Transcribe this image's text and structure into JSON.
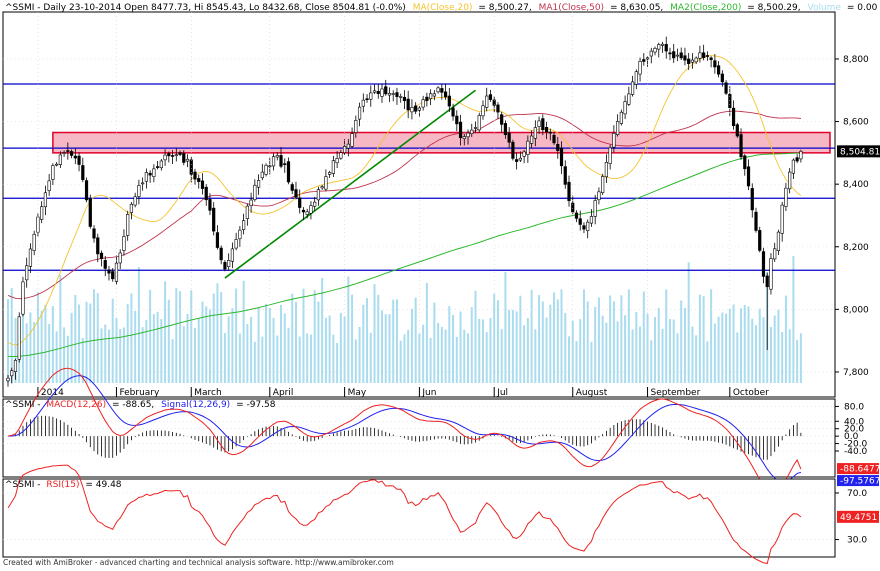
{
  "colors": {
    "price": "#000000",
    "ma20": "#f4c430",
    "ma50": "#c0344d",
    "ma200": "#2db82d",
    "volume": "#a8dcee",
    "hline": "#0000cc",
    "trendline": "#008800",
    "zone_fill": "#f7b8c6",
    "zone_stroke": "#e0002a",
    "macd": "#ee2222",
    "signal": "#2222ee",
    "hist": "#000000",
    "rsi": "#ee2222",
    "price_tag": "#000000",
    "macd_tag": "#ee2222",
    "signal_tag": "#2222ee"
  },
  "footer": "Created with AmiBroker - advanced charting and technical analysis software. http://www.amibroker.com",
  "chart_data": [
    {
      "type": "candlestick",
      "panel": "price",
      "header": {
        "symbol_line": "^SSMI - Daily 23-10-2014 Open 8477.73, Hi 8545.43, Lo 8432.68, Close 8504.81 (-0.0%)",
        "ma20_label": "MA(Close,20)",
        "ma20_value": "= 8,500.27,",
        "ma50_label": "MA1(Close,50)",
        "ma50_value": "= 8,630.05,",
        "ma200_label": "MA2(Close,200)",
        "ma200_value": "= 8,500.29,",
        "volume_label": "Volume",
        "volume_value": "= 0.00"
      },
      "ylim": [
        7720,
        8950
      ],
      "yticks": [
        7800,
        8000,
        8200,
        8400,
        8600,
        8800
      ],
      "ytick_labels": [
        "7,800",
        "8,000",
        "8,200",
        "8,400",
        "8,600",
        "8,800"
      ],
      "last_label": "8,504.81",
      "last_value": 8504.81,
      "months": [
        {
          "label": "2014",
          "index": 8
        },
        {
          "label": "February",
          "index": 29
        },
        {
          "label": "March",
          "index": 49
        },
        {
          "label": "April",
          "index": 70
        },
        {
          "label": "May",
          "index": 90
        },
        {
          "label": "Jun",
          "index": 110
        },
        {
          "label": "Jul",
          "index": 130
        },
        {
          "label": "August",
          "index": 151
        },
        {
          "label": "September",
          "index": 171
        },
        {
          "label": "October",
          "index": 193
        }
      ],
      "anchors": [
        [
          0,
          7780
        ],
        [
          2,
          7830
        ],
        [
          4,
          8100
        ],
        [
          6,
          8180
        ],
        [
          8,
          8300
        ],
        [
          10,
          8380
        ],
        [
          12,
          8450
        ],
        [
          14,
          8480
        ],
        [
          16,
          8500
        ],
        [
          18,
          8480
        ],
        [
          20,
          8420
        ],
        [
          22,
          8260
        ],
        [
          24,
          8190
        ],
        [
          26,
          8140
        ],
        [
          28,
          8110
        ],
        [
          30,
          8170
        ],
        [
          32,
          8290
        ],
        [
          34,
          8360
        ],
        [
          36,
          8410
        ],
        [
          38,
          8440
        ],
        [
          40,
          8460
        ],
        [
          42,
          8480
        ],
        [
          44,
          8490
        ],
        [
          46,
          8490
        ],
        [
          48,
          8470
        ],
        [
          50,
          8420
        ],
        [
          52,
          8380
        ],
        [
          54,
          8320
        ],
        [
          56,
          8200
        ],
        [
          58,
          8130
        ],
        [
          60,
          8180
        ],
        [
          62,
          8250
        ],
        [
          64,
          8330
        ],
        [
          66,
          8390
        ],
        [
          68,
          8440
        ],
        [
          70,
          8470
        ],
        [
          72,
          8480
        ],
        [
          74,
          8450
        ],
        [
          76,
          8380
        ],
        [
          78,
          8320
        ],
        [
          80,
          8300
        ],
        [
          82,
          8350
        ],
        [
          84,
          8400
        ],
        [
          86,
          8450
        ],
        [
          88,
          8480
        ],
        [
          90,
          8510
        ],
        [
          92,
          8570
        ],
        [
          94,
          8640
        ],
        [
          96,
          8680
        ],
        [
          98,
          8700
        ],
        [
          100,
          8700
        ],
        [
          102,
          8690
        ],
        [
          104,
          8680
        ],
        [
          106,
          8660
        ],
        [
          108,
          8640
        ],
        [
          110,
          8650
        ],
        [
          112,
          8670
        ],
        [
          114,
          8700
        ],
        [
          116,
          8700
        ],
        [
          118,
          8650
        ],
        [
          120,
          8580
        ],
        [
          122,
          8540
        ],
        [
          124,
          8560
        ],
        [
          126,
          8620
        ],
        [
          128,
          8680
        ],
        [
          130,
          8660
        ],
        [
          132,
          8600
        ],
        [
          134,
          8520
        ],
        [
          136,
          8460
        ],
        [
          138,
          8490
        ],
        [
          140,
          8560
        ],
        [
          142,
          8590
        ],
        [
          144,
          8580
        ],
        [
          146,
          8540
        ],
        [
          148,
          8460
        ],
        [
          150,
          8350
        ],
        [
          152,
          8290
        ],
        [
          154,
          8260
        ],
        [
          156,
          8300
        ],
        [
          158,
          8380
        ],
        [
          160,
          8470
        ],
        [
          162,
          8550
        ],
        [
          164,
          8640
        ],
        [
          166,
          8700
        ],
        [
          168,
          8760
        ],
        [
          170,
          8800
        ],
        [
          172,
          8830
        ],
        [
          174,
          8840
        ],
        [
          176,
          8830
        ],
        [
          178,
          8810
        ],
        [
          180,
          8800
        ],
        [
          182,
          8790
        ],
        [
          184,
          8810
        ],
        [
          186,
          8810
        ],
        [
          188,
          8790
        ],
        [
          190,
          8760
        ],
        [
          192,
          8700
        ],
        [
          194,
          8600
        ],
        [
          196,
          8500
        ],
        [
          198,
          8400
        ],
        [
          200,
          8250
        ],
        [
          202,
          8100
        ],
        [
          203,
          8060
        ],
        [
          204,
          8150
        ],
        [
          206,
          8250
        ],
        [
          208,
          8400
        ],
        [
          210,
          8470
        ],
        [
          212,
          8505
        ]
      ],
      "hlines": [
        8720,
        8515,
        8355,
        8125
      ],
      "zone": {
        "from": 8500,
        "to": 8565,
        "x_start_index": 12
      },
      "trendline": {
        "from": [
          58,
          8100
        ],
        "to": [
          125,
          8700
        ]
      }
    },
    {
      "type": "line",
      "panel": "macd",
      "header": {
        "prefix": "^SSMI -",
        "macd_label": "MACD(12,26)",
        "macd_value": "= -88.65,",
        "signal_label": "Signal(12,26,9)",
        "signal_value": "= -97.58"
      },
      "ylim": [
        -110,
        100
      ],
      "yticks": [
        80,
        40,
        20,
        0,
        -20,
        -40
      ],
      "ytick_labels": [
        "80.0",
        "40.0",
        "20.0",
        "0.0",
        "-20.0",
        "-40.0"
      ],
      "macd_last": -88.65,
      "signal_last": -97.58,
      "macd_last_label": "-88.6477",
      "signal_last_label": "-97.5767"
    },
    {
      "type": "line",
      "panel": "rsi",
      "header": {
        "prefix": "^SSMI -",
        "rsi_label": "RSI(15)",
        "rsi_value": "= 49.48"
      },
      "ylim": [
        15,
        82
      ],
      "yticks": [
        70,
        30
      ],
      "ytick_labels": [
        "70.0",
        "30.0"
      ],
      "rsi_last": 49.48,
      "rsi_last_label": "49.4751"
    }
  ]
}
